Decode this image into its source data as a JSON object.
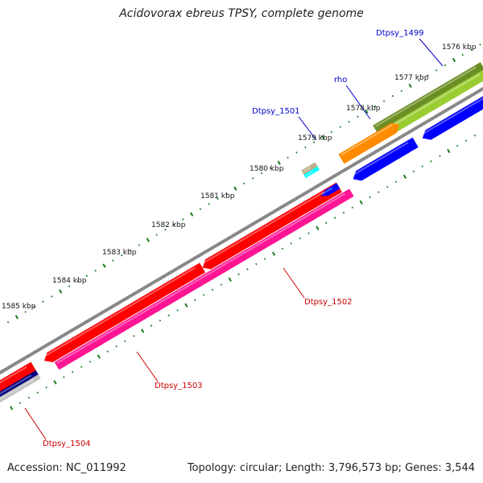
{
  "title": "Acidovorax ebreus TPSY, complete genome",
  "footer": {
    "accession_label": "Accession:",
    "accession": "NC_011992",
    "topology_label": "Topology:",
    "topology": "circular",
    "length_label": "Length:",
    "length": "3,796,573 bp",
    "genes_label": "Genes:",
    "genes": "3,544"
  },
  "colors": {
    "backbone": "#888888",
    "tick": "#1a7a1a",
    "forward_label": "#0000cc",
    "reverse_label": "#cc0000",
    "gene_red": "#ff0000",
    "gene_pink": "#ff1493",
    "gene_blue": "#0000ff",
    "gene_navy": "#000080",
    "gene_orange": "#ff8c00",
    "gene_olive": "#6b8e23",
    "gene_lightgreen": "#9acd32",
    "gene_tan": "#bfae8a",
    "gene_cyan": "#00ffff",
    "gene_gray": "#c0c0c0"
  },
  "tick_labels": [
    {
      "text": "1576 kbp",
      "kbp": 1576
    },
    {
      "text": "1577 kbp",
      "kbp": 1577
    },
    {
      "text": "1578 kbp",
      "kbp": 1578
    },
    {
      "text": "1579 kbp",
      "kbp": 1579
    },
    {
      "text": "1580 kbp",
      "kbp": 1580
    },
    {
      "text": "1581 kbp",
      "kbp": 1581
    },
    {
      "text": "1582 kbp",
      "kbp": 1582
    },
    {
      "text": "1583 kbp",
      "kbp": 1583
    },
    {
      "text": "1584 kbp",
      "kbp": 1584
    },
    {
      "text": "1585 kbp",
      "kbp": 1585
    }
  ],
  "gene_labels": [
    {
      "text": "Dtpsy_1499",
      "strand": "forward"
    },
    {
      "text": "rho",
      "strand": "forward"
    },
    {
      "text": "Dtpsy_1501",
      "strand": "forward"
    },
    {
      "text": "Dtpsy_1502",
      "strand": "reverse"
    },
    {
      "text": "Dtpsy_1503",
      "strand": "reverse"
    },
    {
      "text": "Dtpsy_1504",
      "strand": "reverse"
    }
  ]
}
